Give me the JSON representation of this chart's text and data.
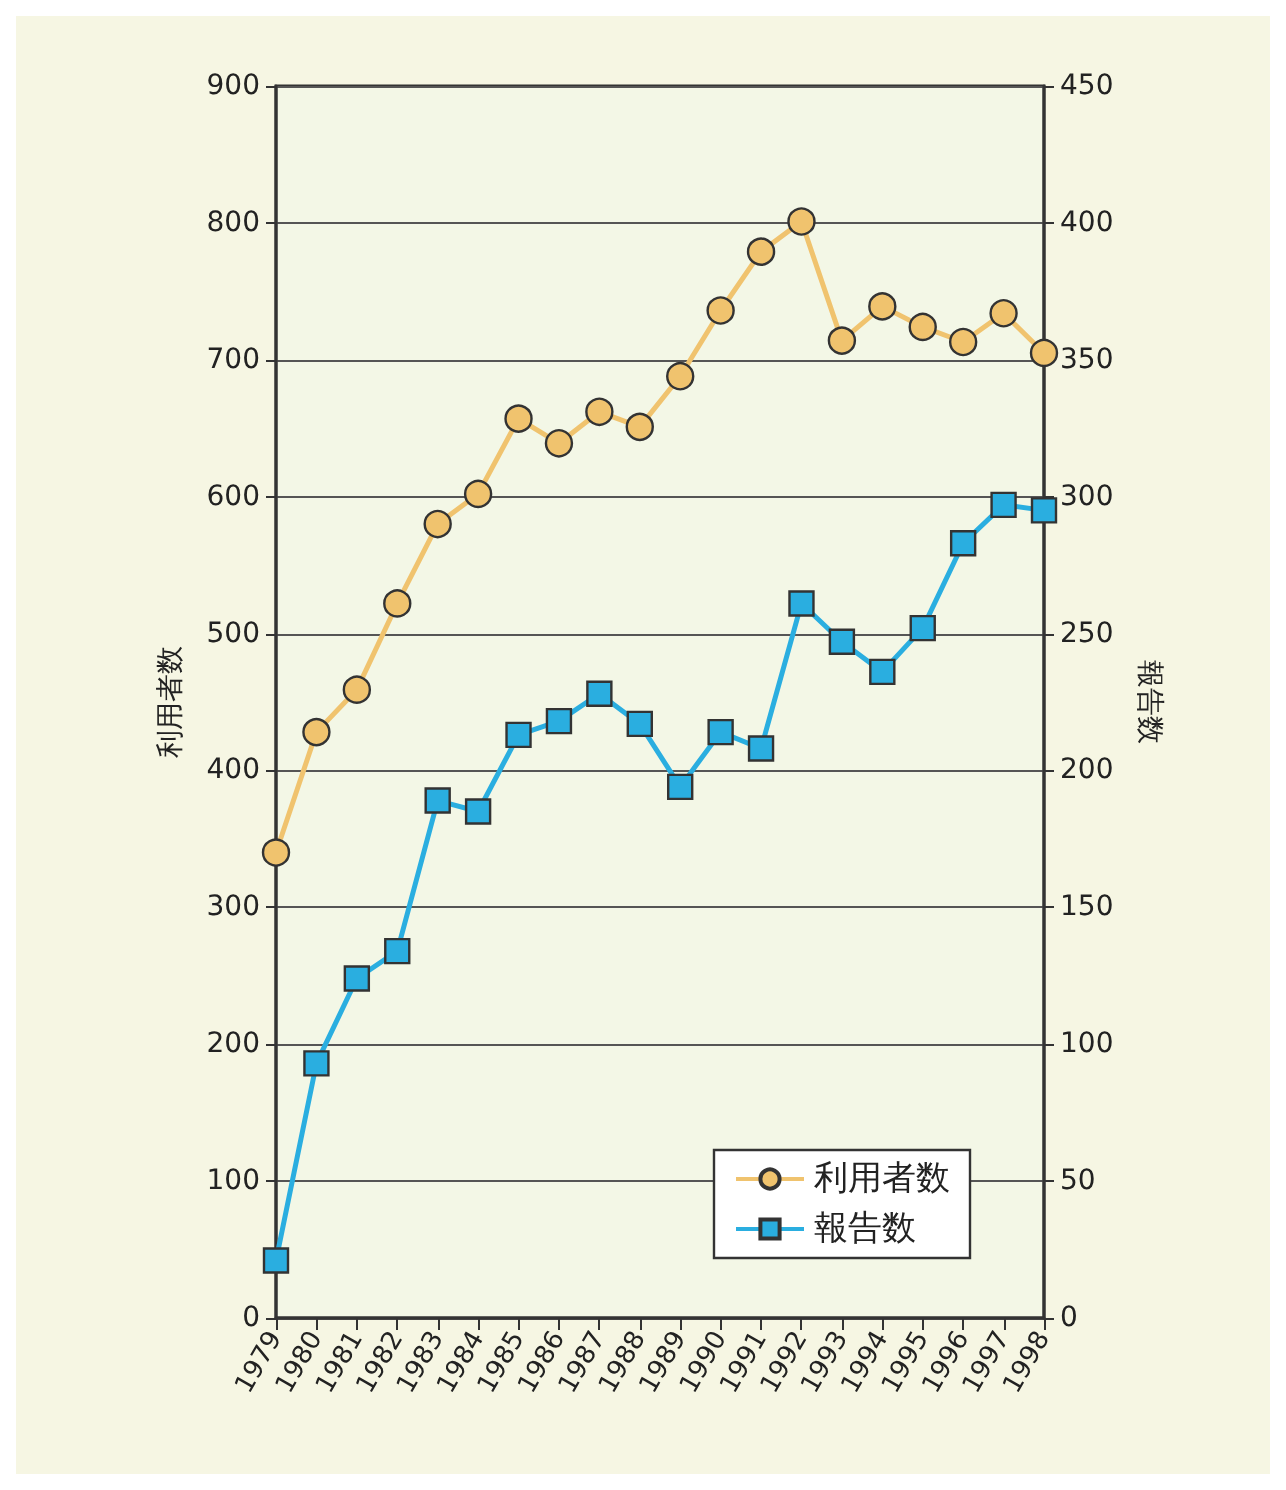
{
  "chart_data": {
    "type": "line",
    "categories": [
      "1979",
      "1980",
      "1981",
      "1982",
      "1983",
      "1984",
      "1985",
      "1986",
      "1987",
      "1988",
      "1989",
      "1990",
      "1991",
      "1992",
      "1993",
      "1994",
      "1995",
      "1996",
      "1997",
      "1998"
    ],
    "series": [
      {
        "name": "利用者数",
        "color": "#f0c36e",
        "marker": "circle",
        "values": [
          340,
          428,
          459,
          522,
          580,
          602,
          657,
          639,
          662,
          651,
          688,
          736,
          779,
          801,
          714,
          739,
          724,
          713,
          734,
          705
        ]
      },
      {
        "name": "報告数",
        "color": "#2aaee0",
        "marker": "square",
        "axis": "y2",
        "values": [
          21,
          93,
          124,
          134,
          189,
          185,
          213,
          218,
          228,
          217,
          194,
          214,
          208,
          261,
          247,
          236,
          252,
          283,
          297,
          295
        ]
      }
    ],
    "ylabel": "利用者数",
    "y2label": "報告数",
    "ylim": [
      0,
      900
    ],
    "yticks": [
      0,
      100,
      200,
      300,
      400,
      500,
      600,
      700,
      800,
      900
    ],
    "y2lim": [
      0,
      450
    ],
    "y2ticks": [
      0,
      50,
      100,
      150,
      200,
      250,
      300,
      350,
      400,
      450
    ],
    "grid": "y",
    "legend": "bottom right",
    "line_style": "solid"
  }
}
